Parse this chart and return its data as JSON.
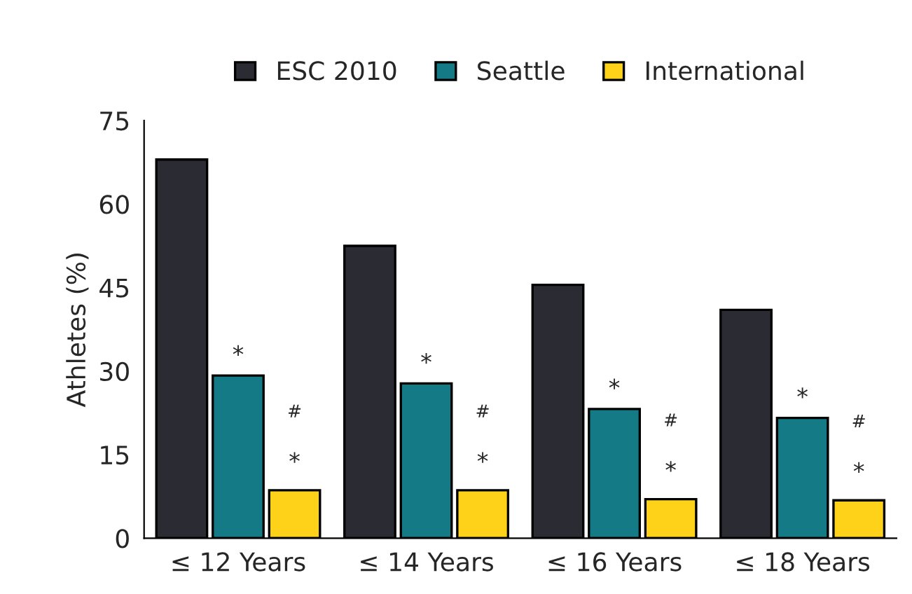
{
  "chart_data": {
    "type": "bar",
    "ylabel": "Athletes (%)",
    "categories": [
      "≤ 12 Years",
      "≤ 14 Years",
      "≤ 16 Years",
      "≤ 18 Years"
    ],
    "series": [
      {
        "name": "ESC 2010",
        "color": "#2b2b33",
        "values": [
          68,
          52.5,
          45.5,
          41
        ]
      },
      {
        "name": "Seattle",
        "color": "#137a86",
        "values": [
          29.2,
          27.8,
          23.2,
          21.6
        ]
      },
      {
        "name": "International",
        "color": "#ffd21a",
        "values": [
          8.6,
          8.6,
          7,
          6.8
        ]
      }
    ],
    "ylim": [
      0,
      75
    ],
    "yticks": [
      0,
      15,
      30,
      45,
      60,
      75
    ],
    "grid": false,
    "legend": "top",
    "annotations": [
      "*",
      "#",
      "*",
      "*",
      "#",
      "*",
      "*",
      "#",
      "*",
      "*",
      "#",
      "*"
    ]
  }
}
